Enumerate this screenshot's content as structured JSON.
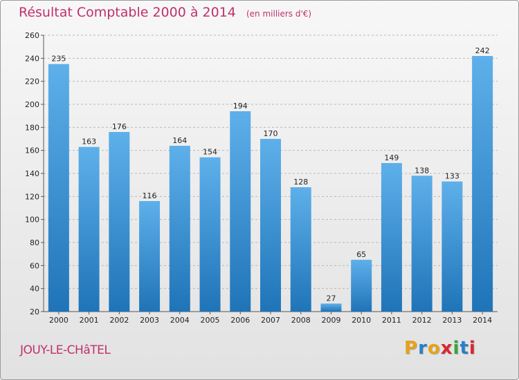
{
  "header": {
    "title": "Résultat Comptable 2000 à 2014",
    "unit": "(en milliers d'€)"
  },
  "footer": {
    "commune": "JOUY-LE-CHâTEL",
    "brand_letters": [
      "P",
      "r",
      "o",
      "x",
      "i",
      "t",
      "i"
    ],
    "brand_colors": [
      "#e8a21a",
      "#2a7fc9",
      "#e8a21a",
      "#d7282f",
      "#3aa43a",
      "#2a7fc9",
      "#d7282f"
    ]
  },
  "colors": {
    "title": "#c0306a",
    "bar_light": "#5eb0ea",
    "bar_dark": "#1f74b8",
    "grid": "#b8b8b8"
  },
  "chart_data": {
    "type": "bar",
    "title": "Résultat Comptable 2000 à 2014",
    "subtitle": "(en milliers d'€)",
    "xlabel": "",
    "ylabel": "",
    "categories": [
      "2000",
      "2001",
      "2002",
      "2003",
      "2004",
      "2005",
      "2006",
      "2007",
      "2008",
      "2009",
      "2010",
      "2011",
      "2012",
      "2013",
      "2014"
    ],
    "values": [
      235,
      163,
      176,
      116,
      164,
      154,
      194,
      170,
      128,
      27,
      65,
      149,
      138,
      133,
      242
    ],
    "ylim": [
      20,
      260
    ],
    "yticks": [
      20,
      40,
      60,
      80,
      100,
      120,
      140,
      160,
      180,
      200,
      220,
      240,
      260
    ],
    "grid": true
  }
}
